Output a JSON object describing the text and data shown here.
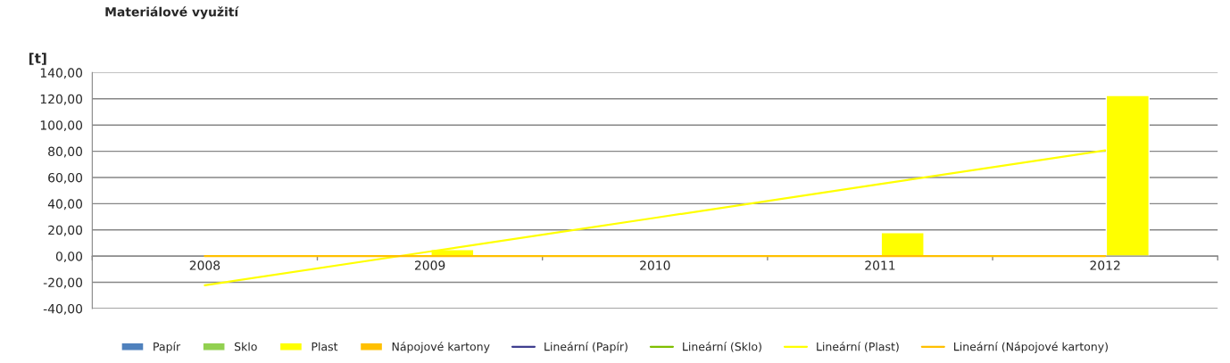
{
  "chart_data": {
    "type": "bar",
    "title": "Materiálové využití",
    "ylabel": "[t]",
    "categories": [
      "2008",
      "2009",
      "2010",
      "2011",
      "2012"
    ],
    "series": [
      {
        "name": "Papír",
        "color": "#4f81bd",
        "values": [
          null,
          null,
          null,
          null,
          null
        ]
      },
      {
        "name": "Sklo",
        "color": "#92d050",
        "values": [
          null,
          null,
          null,
          null,
          null
        ]
      },
      {
        "name": "Plast",
        "color": "#ffff00",
        "values": [
          null,
          5,
          1,
          18,
          122.5
        ]
      },
      {
        "name": "Nápojové kartony",
        "color": "#ffc000",
        "values": [
          null,
          null,
          null,
          null,
          null
        ]
      },
      {
        "name": "Lineární (Papír)",
        "type": "line",
        "color": "#403f8f",
        "values": [
          null,
          null,
          null,
          null,
          null
        ]
      },
      {
        "name": "Lineární (Sklo)",
        "type": "line",
        "color": "#7fbf00",
        "values": [
          null,
          null,
          null,
          null,
          null
        ]
      },
      {
        "name": "Lineární (Plast)",
        "type": "line",
        "color": "#ffff00",
        "values": [
          -22.2,
          3.5,
          29.2,
          54.9,
          80.6
        ]
      },
      {
        "name": "Lineární (Nápojové kartony)",
        "type": "line",
        "color": "#ffc000",
        "values": [
          0,
          0,
          0,
          0,
          0
        ]
      }
    ],
    "ylim": [
      -40,
      140
    ],
    "yticks": [
      {
        "value": -40,
        "label": "-40,00"
      },
      {
        "value": -20,
        "label": "-20,00"
      },
      {
        "value": 0,
        "label": "0,00"
      },
      {
        "value": 20,
        "label": "20,00"
      },
      {
        "value": 40,
        "label": "40,00"
      },
      {
        "value": 60,
        "label": "60,00"
      },
      {
        "value": 80,
        "label": "80,00"
      },
      {
        "value": 100,
        "label": "100,00"
      },
      {
        "value": 120,
        "label": "120,00"
      },
      {
        "value": 140,
        "label": "140,00"
      }
    ],
    "grid": "y",
    "legend": "bottom"
  }
}
